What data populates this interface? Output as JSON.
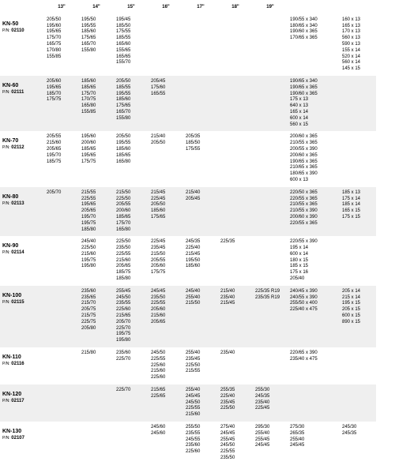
{
  "headers": [
    "",
    "13\"",
    "14\"",
    "15\"",
    "16\"",
    "17\"",
    "18\"",
    "19\"",
    "",
    ""
  ],
  "rows": [
    {
      "alt": false,
      "name": "KN-50",
      "pn": "02110",
      "cols": [
        "205/50\n195/60\n195/65\n175/70\n165/75\n170/80\n155/85",
        "195/50\n195/55\n185/60\n175/65\n165/70\n155/80",
        "195/45\n185/50\n175/55\n185/55\n165/60\n155/65\n165/65\n155/70",
        "",
        "",
        "",
        "",
        "190/55 x 340\n180/65 x 340\n190/60 x 365\n170/65 x 365",
        "160 x 13\n165 x 13\n170 x 13\n560 x 13\n590 x 13\n155 x 14\n520 x 14\n560 x 14\n145 x 15"
      ]
    },
    {
      "alt": true,
      "name": "KN-60",
      "pn": "02111",
      "cols": [
        "205/60\n195/65\n185/70\n175/75",
        "185/60\n185/65\n175/70\n170/75\n165/80\n155/85",
        "205/50\n185/55\n195/55\n185/60\n175/65\n165/70\n155/80",
        "205/45\n175/60\n165/55",
        "",
        "",
        "",
        "190/65 x 340\n190/65 x 365\n190/60 x 365\n175 x 13\n640 x 13\n165 x 14\n600 x 14\n560 x 15",
        ""
      ]
    },
    {
      "alt": false,
      "name": "KN-70",
      "pn": "02112",
      "cols": [
        "205/55\n215/60\n205/65\n195/70\n185/75",
        "195/60\n200/60\n185/65\n195/65\n175/75",
        "205/50\n195/55\n185/60\n185/65\n165/80",
        "215/40\n205/50",
        "205/35\n185/50\n175/55",
        "",
        "",
        "200/60 x 365\n210/55 x 365\n200/55 x 390\n200/60 x 365\n190/65 x 365\n210/65 x 365\n180/65 x 390\n600 x 13",
        ""
      ]
    },
    {
      "alt": true,
      "name": "KN-80",
      "pn": "02113",
      "cols": [
        "205/70",
        "215/55\n225/55\n195/65\n205/65\n195/70\n195/75\n185/80",
        "215/50\n225/50\n205/55\n200/60\n185/65\n175/70\n165/80",
        "215/45\n225/45\n205/50\n185/60\n175/65",
        "215/40\n205/45",
        "",
        "",
        "220/50 x 365\n220/55 x 365\n210/55 x 365\n210/55 x 390\n200/60 x 390\n220/55 x 365",
        "185 x 13\n175 x 14\n185 x 14\n165 x 15\n175 x 15"
      ]
    },
    {
      "alt": false,
      "name": "KN-90",
      "pn": "02114",
      "cols": [
        "",
        "245/40\n225/50\n215/60\n195/75\n195/80",
        "225/50\n235/50\n225/55\n215/60\n205/65\n185/75\n185/80",
        "225/45\n235/45\n215/50\n205/55\n205/60\n175/75",
        "245/35\n225/40\n215/45\n195/50\n185/60",
        "225/35",
        "",
        "220/55 x 390\n195 x 14\n600 x 14\n180 x 15\n185 x 15\n175 x 16\n205/40",
        ""
      ]
    },
    {
      "alt": true,
      "name": "KN-100",
      "pn": "02115",
      "cols": [
        "",
        "235/60\n235/65\n215/70\n205/75\n215/75\n225/75\n205/80",
        "255/45\n245/50\n235/55\n225/60\n215/65\n205/70\n225/70\n195/75\n195/80",
        "245/45\n235/50\n225/55\n205/60\n215/60\n205/65",
        "245/40\n255/40\n215/50",
        "215/40\n235/40\n215/45",
        "225/35 R19\n235/35 R19",
        "240/45 x 390\n240/55 x 390\n255/50 x 400\n225/40 x 475",
        "205 x 14\n215 x 14\n195 x 15\n205 x 15\n600 x 15\n890 x 15"
      ]
    },
    {
      "alt": false,
      "name": "KN-110",
      "pn": "02116",
      "cols": [
        "",
        "215/80",
        "235/60\n225/70",
        "245/50\n225/55\n225/60\n215/60\n225/60",
        "255/40\n235/45\n225/50\n215/55",
        "235/40",
        "",
        "220/65 x 390\n235/40 x 475",
        ""
      ]
    },
    {
      "alt": true,
      "name": "KN-120",
      "pn": "02117",
      "cols": [
        "",
        "",
        "225/70",
        "215/65\n225/65",
        "255/40\n245/45\n245/50\n225/55\n215/60",
        "255/35\n225/40\n235/45\n225/50",
        "255/30\n245/35\n235/40\n225/45",
        "",
        ""
      ]
    },
    {
      "alt": false,
      "name": "KN-130",
      "pn": "02107",
      "cols": [
        "",
        "",
        "",
        "245/60\n245/60",
        "255/50\n235/55\n245/55\n235/60\n225/60",
        "275/40\n245/45\n255/45\n245/50\n225/55\n235/50",
        "295/30\n255/40\n255/45\n245/45",
        "275/30\n265/35\n255/40\n245/45",
        "245/30\n245/35"
      ]
    }
  ]
}
